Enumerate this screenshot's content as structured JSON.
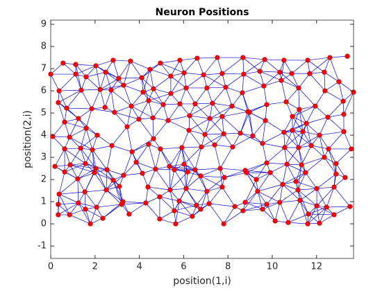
{
  "chart_data": {
    "type": "network-scatter",
    "title": "Neuron Positions",
    "x_label": "position(1,i)",
    "y_label": "position(2,i)",
    "xlim": [
      0,
      13.67
    ],
    "ylim": [
      -1.56,
      9.19
    ],
    "xticks": [
      0,
      2,
      4,
      6,
      8,
      10,
      12
    ],
    "yticks": [
      -1,
      0,
      1,
      2,
      3,
      4,
      5,
      6,
      7,
      8,
      9
    ],
    "line_color": "#0000cc",
    "series": [
      {
        "color": "#ff0000",
        "x": [
          0,
          0.56,
          1.13,
          2.04,
          2.82,
          3.6,
          4.95,
          5.83,
          6.61,
          7.52,
          8.68,
          9.66,
          10.53,
          11.6,
          12.6,
          13.39,
          1.13,
          1.6,
          2.48,
          3.07,
          4.11,
          4.48,
          5.42,
          6.02,
          6.9,
          7.74,
          8.71,
          9.44,
          10.34,
          10.88,
          11.69,
          12.35,
          13.01,
          0.38,
          1.38,
          2.23,
          2.73,
          3.29,
          4.17,
          4.64,
          5.42,
          6.11,
          7.05,
          7.9,
          8.65,
          9.62,
          10.41,
          11.19,
          12.38,
          13.67,
          0.34,
          0.72,
          1.85,
          2.45,
          2.88,
          3.64,
          4.42,
          5.08,
          5.83,
          6.52,
          7.3,
          8.18,
          8.97,
          9.75,
          10.63,
          11.22,
          11.94,
          13.2,
          0.63,
          1.25,
          1.6,
          3.45,
          3.98,
          4.61,
          5.3,
          6.27,
          7.18,
          7.74,
          8.9,
          9.69,
          10.91,
          11.54,
          12.51,
          13.23,
          0.09,
          0.85,
          2.1,
          4.64,
          6.24,
          6.96,
          7.81,
          8.56,
          9.12,
          10.53,
          10.91,
          11.38,
          12.13,
          13.23,
          0.63,
          1.35,
          1.88,
          2.76,
          3.67,
          4.42,
          4.95,
          5.92,
          6.8,
          7.4,
          8.21,
          9.56,
          10.56,
          11.19,
          11.76,
          12.54,
          13.57,
          0.19,
          0.88,
          1.57,
          2.04,
          2.54,
          3.86,
          5.36,
          6.02,
          6.52,
          7.65,
          8.78,
          9.75,
          10.66,
          11.32,
          12.35,
          12.88,
          0.63,
          1.22,
          1.97,
          2.82,
          3.29,
          4.14,
          4.73,
          5.58,
          6.18,
          6.77,
          7.84,
          8.84,
          9.28,
          9.91,
          11.07,
          11.5,
          12.88,
          13.29,
          0.38,
          1.54,
          2.51,
          3.1,
          4.39,
          5.39,
          6.11,
          7.05,
          7.74,
          9.34,
          10.47,
          11.16,
          12.01,
          12.79,
          0.34,
          1.25,
          2.07,
          3.26,
          4.29,
          4.92,
          5.8,
          6.58,
          7.15,
          8.31,
          8.78,
          9.75,
          10.34,
          11.25,
          12.01,
          12.45,
          13.51,
          0.34,
          0.85,
          1.57,
          3.54,
          3.2,
          5.58,
          6.77,
          8.68,
          9.56,
          11.63,
          1.79,
          2.35,
          4.92,
          5.64,
          6.39,
          7.81,
          10.13,
          10.72,
          11.6,
          12.13,
          12.79
        ],
        "y": [
          6.75,
          7.25,
          7.19,
          7.13,
          7.38,
          7.34,
          7.25,
          7.38,
          7.47,
          7.5,
          7.5,
          7.41,
          7.38,
          7.38,
          7.5,
          7.56,
          6.75,
          6.63,
          6.84,
          6.56,
          6.59,
          6.97,
          6.66,
          6.81,
          6.72,
          6.78,
          6.75,
          6.88,
          6.84,
          6.78,
          6.78,
          6.84,
          6.41,
          6,
          6.03,
          6.06,
          6.03,
          6.25,
          5.94,
          6.09,
          5.88,
          6.13,
          6.13,
          6.16,
          5.91,
          6.22,
          6.47,
          6.13,
          6,
          5.94,
          5.47,
          5.22,
          5.19,
          5.25,
          5.03,
          5.31,
          5.56,
          5.38,
          5.41,
          5.41,
          5.44,
          5.31,
          5.03,
          5.38,
          5.5,
          5.16,
          5.31,
          5.53,
          4.59,
          4.75,
          4.31,
          4.38,
          4.72,
          4.78,
          4.66,
          4.88,
          4.75,
          4.84,
          5.06,
          4.66,
          4.84,
          4.53,
          4.81,
          4.94,
          3.94,
          3.91,
          4,
          3.84,
          4.22,
          4.03,
          4.06,
          4.09,
          3.97,
          4.13,
          4.22,
          4.16,
          4,
          4.16,
          3.38,
          3.41,
          3.34,
          3.53,
          3.25,
          3.59,
          3.38,
          3.44,
          3.47,
          3.56,
          3.47,
          3.63,
          3.44,
          3.44,
          3.53,
          3.38,
          3.38,
          2.59,
          2.66,
          2.72,
          2.5,
          2.44,
          2.78,
          2.59,
          2.69,
          2.44,
          2.5,
          2.41,
          2.75,
          2.69,
          2.66,
          3,
          2.72,
          2.34,
          2.03,
          2.31,
          1.97,
          2.19,
          2.28,
          2.47,
          2.44,
          2.34,
          2.16,
          2.09,
          2.31,
          2,
          2.31,
          1.91,
          2.31,
          2.25,
          2.09,
          1.34,
          1.44,
          1.53,
          1.69,
          1.66,
          1.53,
          1.59,
          1.47,
          1.66,
          1.47,
          1.78,
          1.53,
          1.59,
          1.66,
          0.88,
          0.94,
          0.75,
          1,
          0.94,
          1.22,
          1.03,
          0.84,
          0.91,
          0.78,
          0.97,
          0.88,
          0.97,
          1.06,
          0.81,
          0.75,
          0.78,
          0.41,
          0.41,
          0.66,
          0.44,
          0.88,
          0.59,
          0.66,
          0.59,
          0.66,
          0.44,
          0,
          0.25,
          0.22,
          0,
          0.34,
          0,
          0.13,
          0.06,
          0,
          0.03,
          0.41
        ]
      }
    ]
  }
}
